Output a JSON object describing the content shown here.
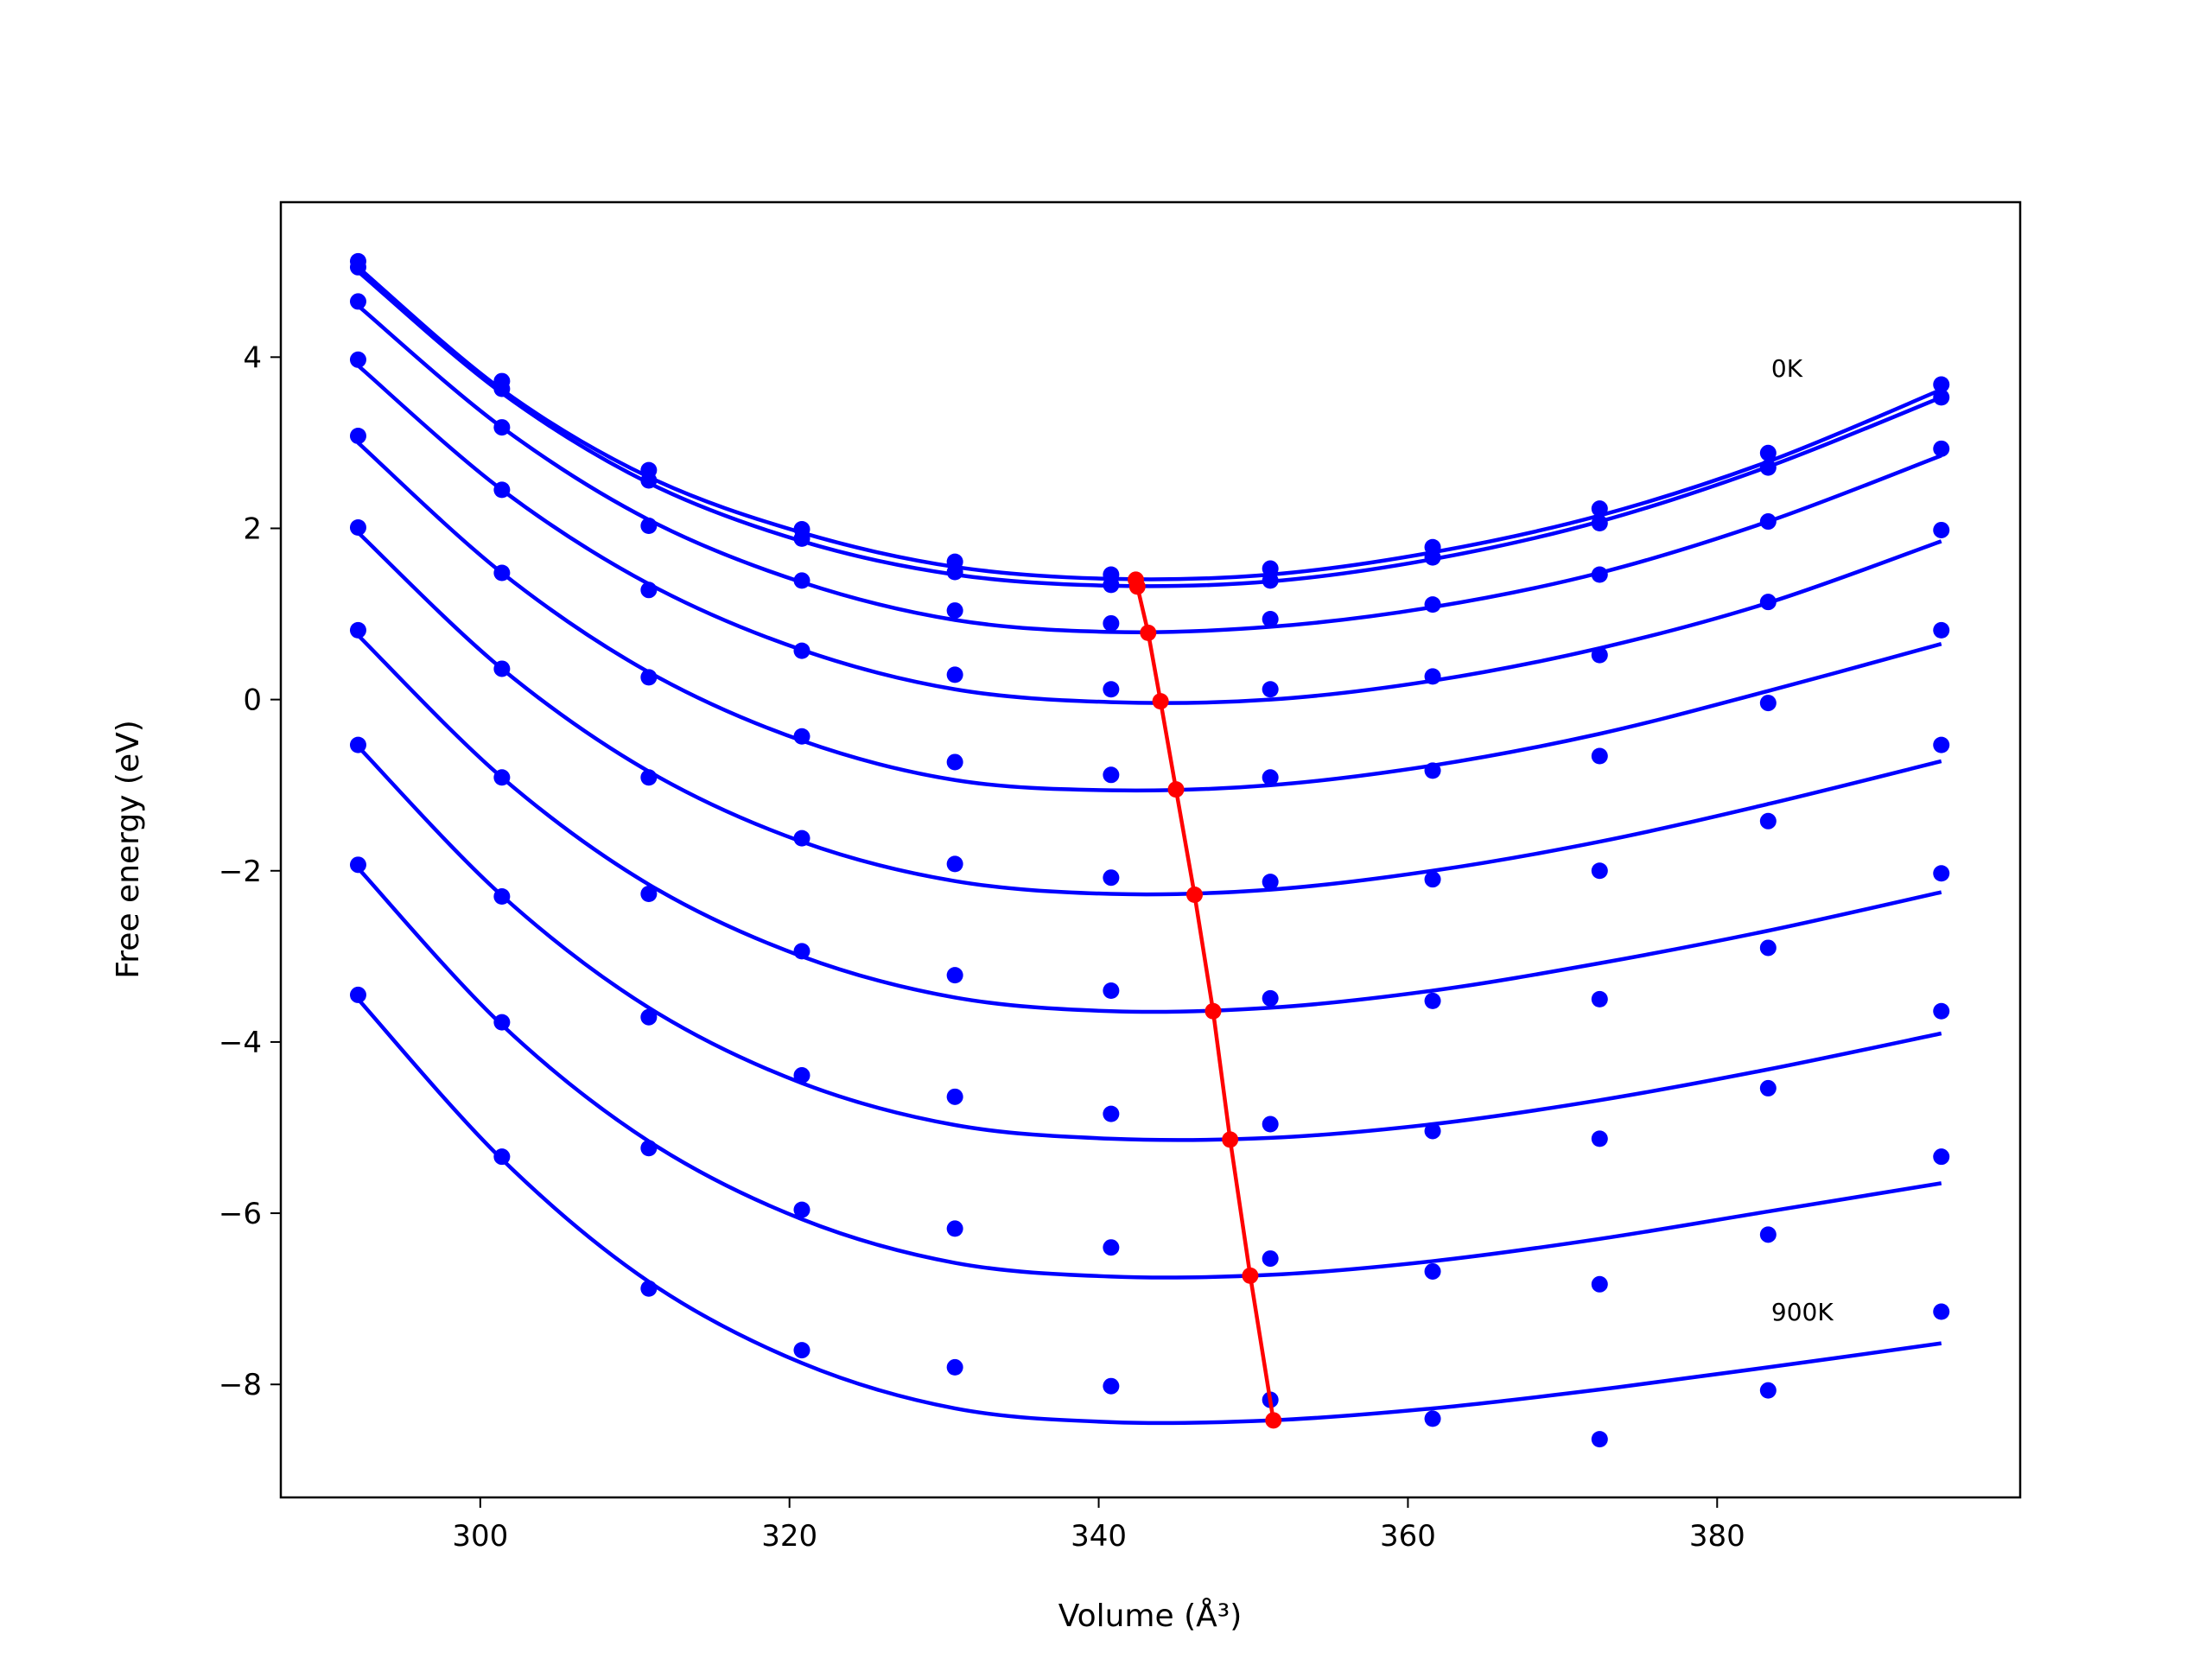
{
  "chart_data": {
    "type": "scatter-fit",
    "x_label": "Volume (Å³)",
    "y_label": "Free energy (eV)",
    "xlim": [
      287.1,
      399.6
    ],
    "ylim": [
      -9.32,
      5.81
    ],
    "xticks": [
      300,
      320,
      340,
      360,
      380
    ],
    "yticks": [
      {
        "value": -8,
        "label": "−8"
      },
      {
        "value": -6,
        "label": "−6"
      },
      {
        "value": -4,
        "label": "−4"
      },
      {
        "value": -2,
        "label": "−2"
      },
      0,
      2,
      4
    ],
    "x": [
      292.1,
      301.4,
      310.9,
      320.8,
      330.7,
      340.8,
      351.1,
      361.6,
      372.4,
      383.3,
      394.5
    ],
    "series": [
      {
        "color": "#0000ff",
        "values": [
          5.12,
          3.72,
          2.68,
          1.99,
          1.61,
          1.46,
          1.53,
          1.78,
          2.23,
          2.88,
          3.68
        ],
        "fit_values": [
          5.05,
          3.62,
          2.6,
          1.95,
          1.55,
          1.41,
          1.46,
          1.72,
          2.15,
          2.78,
          3.62
        ]
      },
      {
        "color": "#0000ff",
        "values": [
          5.05,
          3.63,
          2.56,
          1.88,
          1.49,
          1.34,
          1.39,
          1.66,
          2.06,
          2.71,
          3.53
        ],
        "fit_values": [
          5.0,
          3.58,
          2.53,
          1.85,
          1.46,
          1.33,
          1.38,
          1.64,
          2.08,
          2.72,
          3.53
        ]
      },
      {
        "color": "#0000ff",
        "values": [
          4.65,
          3.18,
          2.03,
          1.39,
          1.04,
          0.89,
          0.94,
          1.11,
          1.46,
          2.08,
          2.93
        ],
        "fit_values": [
          4.6,
          3.18,
          2.1,
          1.37,
          0.93,
          0.79,
          0.85,
          1.08,
          1.48,
          2.08,
          2.85
        ]
      },
      {
        "color": "#0000ff",
        "values": [
          3.97,
          2.45,
          1.28,
          0.57,
          0.29,
          0.12,
          0.12,
          0.27,
          0.52,
          1.14,
          1.98
        ],
        "fit_values": [
          3.9,
          2.45,
          1.35,
          0.58,
          0.12,
          -0.03,
          0.0,
          0.22,
          0.6,
          1.13,
          1.85
        ]
      },
      {
        "color": "#0000ff",
        "values": [
          3.08,
          1.48,
          0.26,
          -0.43,
          -0.73,
          -0.88,
          -0.91,
          -0.83,
          -0.66,
          -0.04,
          0.81
        ],
        "fit_values": [
          3.0,
          1.48,
          0.32,
          -0.48,
          -0.94,
          -1.06,
          -1.0,
          -0.77,
          -0.4,
          0.1,
          0.65
        ]
      },
      {
        "color": "#0000ff",
        "values": [
          2.01,
          0.36,
          -0.91,
          -1.62,
          -1.92,
          -2.08,
          -2.13,
          -2.1,
          -2.0,
          -1.42,
          -0.53
        ],
        "fit_values": [
          1.95,
          0.36,
          -0.84,
          -1.66,
          -2.12,
          -2.27,
          -2.22,
          -2.0,
          -1.66,
          -1.22,
          -0.72
        ]
      },
      {
        "color": "#0000ff",
        "values": [
          0.81,
          -0.91,
          -2.27,
          -2.94,
          -3.22,
          -3.4,
          -3.49,
          -3.52,
          -3.5,
          -2.9,
          -2.03
        ],
        "fit_values": [
          0.75,
          -0.91,
          -2.16,
          -3.0,
          -3.48,
          -3.64,
          -3.6,
          -3.4,
          -3.08,
          -2.7,
          -2.25
        ]
      },
      {
        "color": "#0000ff",
        "values": [
          -0.53,
          -2.3,
          -3.71,
          -4.39,
          -4.64,
          -4.84,
          -4.96,
          -5.04,
          -5.13,
          -4.54,
          -3.64
        ],
        "fit_values": [
          -0.55,
          -2.29,
          -3.6,
          -4.48,
          -4.97,
          -5.13,
          -5.12,
          -4.96,
          -4.68,
          -4.32,
          -3.9
        ]
      },
      {
        "color": "#0000ff",
        "values": [
          -1.93,
          -3.77,
          -5.24,
          -5.96,
          -6.18,
          -6.4,
          -6.53,
          -6.68,
          -6.83,
          -6.25,
          -5.34
        ],
        "fit_values": [
          -1.97,
          -3.8,
          -5.16,
          -6.07,
          -6.58,
          -6.74,
          -6.72,
          -6.56,
          -6.3,
          -5.98,
          -5.65
        ]
      },
      {
        "color": "#0000ff",
        "values": [
          -3.45,
          -5.34,
          -6.88,
          -7.6,
          -7.8,
          -8.02,
          -8.18,
          -8.4,
          -8.64,
          -8.07,
          -7.15
        ],
        "fit_values": [
          -3.5,
          -5.37,
          -6.8,
          -7.75,
          -8.28,
          -8.44,
          -8.42,
          -8.28,
          -8.06,
          -7.8,
          -7.52
        ]
      }
    ],
    "minima": {
      "color": "#ff0000",
      "x": [
        342.4,
        342.5,
        343.2,
        344.0,
        345.0,
        346.2,
        347.4,
        348.5,
        349.8,
        351.3
      ],
      "values": [
        1.4,
        1.32,
        0.78,
        -0.02,
        -1.05,
        -2.28,
        -3.64,
        -5.14,
        -6.73,
        -8.42
      ]
    },
    "annotations": [
      {
        "text": "0K",
        "x": 383.5,
        "y": 3.87
      },
      {
        "text": "900K",
        "x": 383.5,
        "y": -7.15
      }
    ]
  }
}
